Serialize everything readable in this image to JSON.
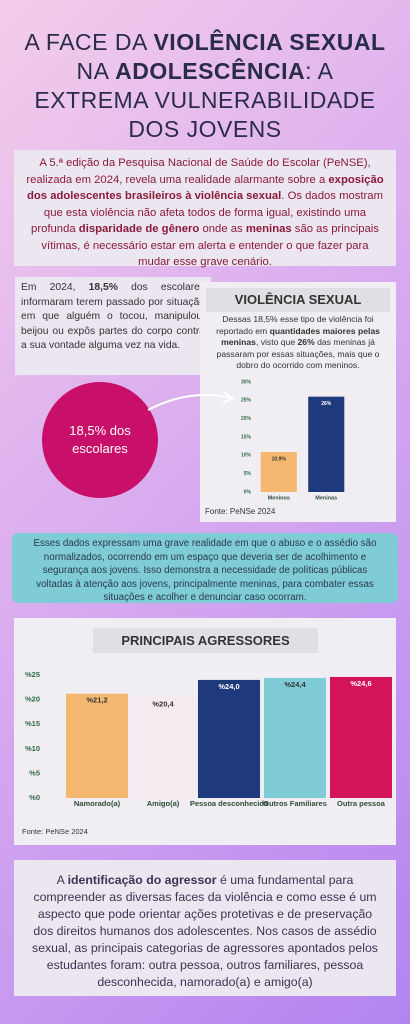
{
  "title": [
    "A FACE DA ",
    "VIOLÊNCIA SEXUAL",
    " NA ",
    "ADOLESCÊNCIA",
    ": A EXTREMA VULNERABILIDADE DOS JOVENS"
  ],
  "intro": [
    "A 5.ª edição da Pesquisa Nacional de Saúde do Escolar (PeNSE), realizada em 2024, revela uma realidade alarmante sobre a ",
    "exposição dos adolescentes brasileiros à violência sexual",
    ". Os dados mostram que esta violência não afeta todos de forma igual, existindo uma profunda ",
    "disparidade de gênero",
    " onde as ",
    "meninas",
    " são as principais vítimas, é necessário estar em alerta e entender o que fazer para mudar esse grave cenário."
  ],
  "side_text": [
    "Em 2024, ",
    "18,5%",
    " dos escolares informaram terem passado por situação em que alguém o tocou, manipulou, beijou ou expôs partes do corpo contra a sua vontade alguma vez na vida."
  ],
  "circle": "18,5% dos escolares",
  "teal_text": "Esses dados expressam uma grave realidade em que o abuso e o assédio são normalizados, ocorrendo em um espaço que deveria ser de acolhimento e segurança aos jovens. Isso demonstra a necessidade de políticas públicas voltadas à atenção aos jovens, principalmente meninas, para combater essas situações e acolher e denunciar caso ocorram.",
  "closing": [
    "A ",
    "identificação do agressor",
    " é uma fundamental para compreender as diversas faces da violência e como esse é um aspecto que pode orientar ações protetivas e de preservação dos direitos humanos dos adolescentes. Nos casos de assédio sexual, as principais categorias de agressores apontados pelos estudantes foram: outra pessoa, outros familiares, pessoa desconhecida, namorado(a) e amigo(a)"
  ],
  "chart_data": [
    {
      "type": "bar",
      "title": "VIOLÊNCIA SEXUAL",
      "description": [
        "Dessas 18,5% esse tipo de violência foi reportado em ",
        "quantidades maiores pelas meninas",
        ", visto que ",
        "26%",
        " das meninas já passaram por essas situações, mais que o dobro do ocorrido com meninos."
      ],
      "categories": [
        "Meninos",
        "Meninas"
      ],
      "values": [
        10.9,
        26
      ],
      "value_labels": [
        "10,9%",
        "26%"
      ],
      "colors": [
        "#f4b870",
        "#1f3a7c"
      ],
      "ylim": [
        0,
        30
      ],
      "yticks": [
        {
          "value": 0,
          "label": "0%"
        },
        {
          "value": 5,
          "label": "5%"
        },
        {
          "value": 10,
          "label": "10%"
        },
        {
          "value": 15,
          "label": "15%"
        },
        {
          "value": 20,
          "label": "20%"
        },
        {
          "value": 25,
          "label": "25%"
        },
        {
          "value": 30,
          "label": "30%"
        }
      ],
      "source": "Fonte:  PeNSe 2024"
    },
    {
      "type": "bar",
      "title": "PRINCIPAIS AGRESSORES",
      "categories": [
        "Namorado(a)",
        "Amigo(a)",
        "Pessoa desconhecida",
        "Outros Familiares",
        "Outra pessoa"
      ],
      "values": [
        21.2,
        20.4,
        24.0,
        24.4,
        24.6
      ],
      "value_labels": [
        "%21,2",
        "%20,4",
        "%24,0",
        "%24,4",
        "%24,6"
      ],
      "colors": [
        "#f4b870",
        "#f4eaf0",
        "#1f3a7c",
        "#7fcbd6",
        "#d4145a"
      ],
      "ylim": [
        0,
        25
      ],
      "yticks": [
        {
          "value": 0,
          "label": "%0"
        },
        {
          "value": 5,
          "label": "%5"
        },
        {
          "value": 10,
          "label": "%10"
        },
        {
          "value": 15,
          "label": "%15"
        },
        {
          "value": 20,
          "label": "%20"
        },
        {
          "value": 25,
          "label": "%25"
        }
      ],
      "source": "Fonte: PeNSe 2024"
    }
  ]
}
